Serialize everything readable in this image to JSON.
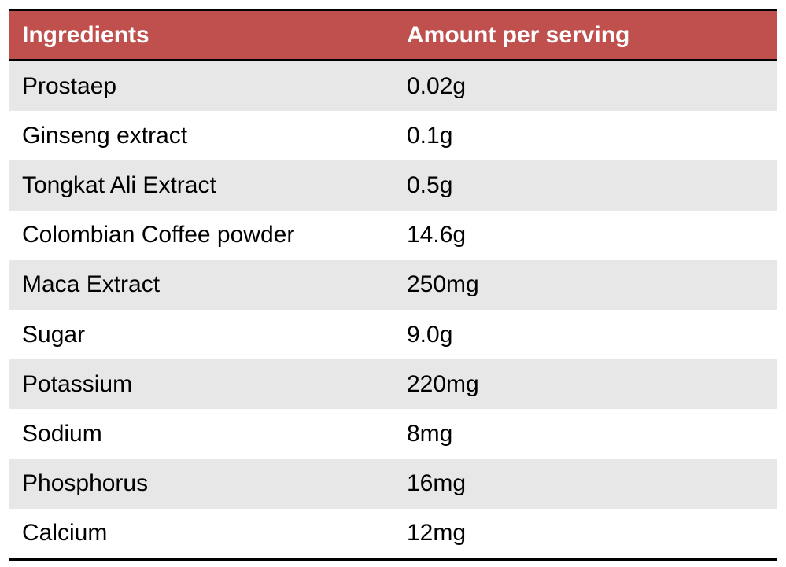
{
  "table": {
    "header": [
      "Ingredients",
      "Amount per serving"
    ],
    "rows": [
      [
        "Prostaep",
        "0.02g"
      ],
      [
        "Ginseng extract",
        "0.1g"
      ],
      [
        "Tongkat Ali Extract",
        "0.5g"
      ],
      [
        "Colombian Coffee powder",
        "14.6g"
      ],
      [
        "Maca Extract",
        "250mg"
      ],
      [
        "Sugar",
        "9.0g"
      ],
      [
        "Potassium",
        "220mg"
      ],
      [
        "Sodium",
        "8mg"
      ],
      [
        "Phosphorus",
        "16mg"
      ],
      [
        "Calcium",
        "12mg"
      ]
    ]
  }
}
